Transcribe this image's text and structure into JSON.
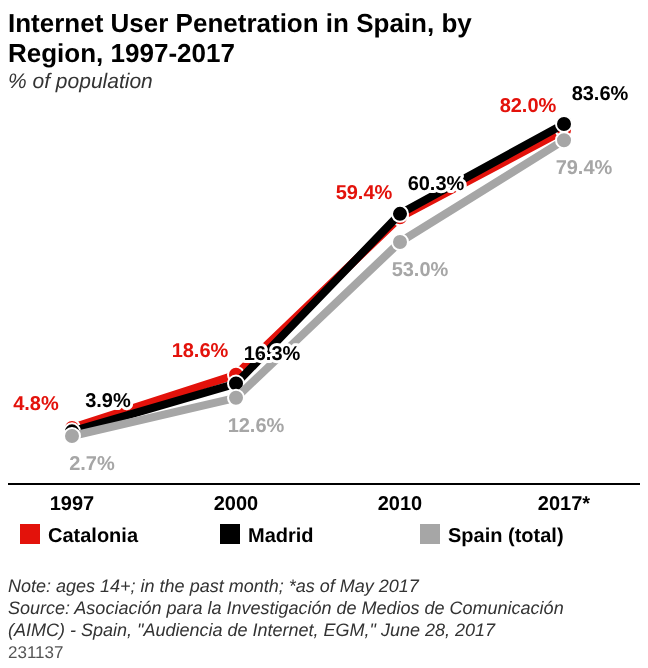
{
  "chart_data": {
    "type": "line",
    "title": "Internet User Penetration in Spain, by Region, 1997-2017",
    "subtitle": "% of population",
    "categories": [
      "1997",
      "2000",
      "2010",
      "2017*"
    ],
    "series": [
      {
        "name": "Catalonia",
        "color": "#e3120b",
        "values": [
          4.8,
          18.6,
          59.4,
          82.0
        ],
        "value_labels": [
          "4.8%",
          "18.6%",
          "59.4%",
          "82.0%"
        ]
      },
      {
        "name": "Madrid",
        "color": "#000000",
        "values": [
          3.9,
          16.3,
          60.3,
          83.6
        ],
        "value_labels": [
          "3.9%",
          "16.3%",
          "60.3%",
          "83.6%"
        ]
      },
      {
        "name": "Spain (total)",
        "color": "#a6a6a6",
        "values": [
          2.7,
          12.6,
          53.0,
          79.4
        ],
        "value_labels": [
          "2.7%",
          "12.6%",
          "53.0%",
          "79.4%"
        ]
      }
    ],
    "marker": "circle",
    "line_style": "solid",
    "grid": false,
    "legend": "bottom",
    "tick_labels": "x",
    "annotations": [
      "Note: ages 14+; in the past month; *as of May 2017",
      "Source: Asociación para la Investigación de Medios de Comunicación (AIMC) - Spain, \"Audiencia de Internet, EGM,\" June 28, 2017",
      "231137"
    ]
  }
}
